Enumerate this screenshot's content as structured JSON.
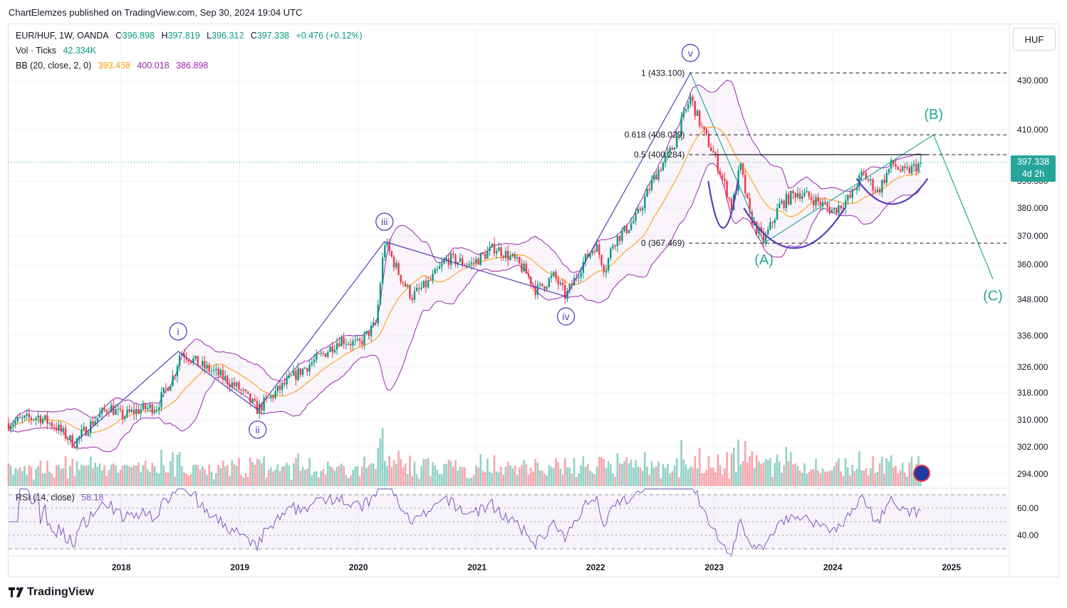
{
  "publisher_line": "ChartElemzes published on TradingView.com, Sep 30, 2024 19:04 UTC",
  "legend": {
    "symbol": "EUR/HUF, 1W, OANDA",
    "open_label": "O",
    "open": "396.898",
    "high_label": "H",
    "high": "397.819",
    "low_label": "L",
    "low": "396.312",
    "close_label": "C",
    "close": "397.338",
    "change": "+0.476 (+0.12%)",
    "vol_label": "Vol · Ticks",
    "vol": "42.334K",
    "bb_label": "BB (20, close, 2, 0)",
    "bb_mid": "393.458",
    "bb_up": "400.018",
    "bb_low": "386.898",
    "rsi_label": "RSI (14, close)",
    "rsi": "58.18"
  },
  "currency_button": "HUF",
  "price_tag": {
    "price": "397.338",
    "countdown": "4d 2h"
  },
  "brand": "TradingView",
  "colors": {
    "up": "#089981",
    "down": "#f23645",
    "bb_mid": "#ff9800",
    "bb_band": "#9c27b0",
    "wave": "#5b3fb8",
    "corrective": "#22ab94",
    "rsi": "#7e57c2"
  },
  "chart_data": {
    "type": "candlestick",
    "symbol": "EUR/HUF",
    "interval": "1W",
    "source": "OANDA",
    "ylim": [
      290,
      437
    ],
    "y_ticks": [
      294,
      302,
      310,
      318,
      326,
      336,
      348,
      360,
      370,
      380,
      390,
      410,
      430
    ],
    "y_tick_labels": [
      "294.000",
      "302.000",
      "310.000",
      "318.000",
      "326.000",
      "336.000",
      "348.000",
      "360.000",
      "370.000",
      "380.000",
      "390.000",
      "410.000",
      "430.000"
    ],
    "x_ticks": [
      "2018",
      "2019",
      "2020",
      "2021",
      "2022",
      "2023",
      "2024",
      "2025"
    ],
    "x_tick_pos": [
      2018,
      2019,
      2020,
      2021,
      2022,
      2023,
      2024,
      2025
    ],
    "xlim": [
      2017.05,
      2025.5
    ],
    "price_path": [
      [
        2017.05,
        309
      ],
      [
        2017.3,
        311
      ],
      [
        2017.45,
        308
      ],
      [
        2017.6,
        303
      ],
      [
        2017.75,
        309
      ],
      [
        2017.9,
        314
      ],
      [
        2018.0,
        311
      ],
      [
        2018.15,
        313
      ],
      [
        2018.3,
        314
      ],
      [
        2018.45,
        324
      ],
      [
        2018.5,
        331
      ],
      [
        2018.65,
        327
      ],
      [
        2018.85,
        323
      ],
      [
        2019.0,
        319
      ],
      [
        2019.15,
        313
      ],
      [
        2019.3,
        318
      ],
      [
        2019.45,
        323
      ],
      [
        2019.7,
        330
      ],
      [
        2019.85,
        335
      ],
      [
        2020.0,
        333
      ],
      [
        2020.15,
        340
      ],
      [
        2020.22,
        368
      ],
      [
        2020.35,
        356
      ],
      [
        2020.45,
        349
      ],
      [
        2020.6,
        354
      ],
      [
        2020.75,
        362
      ],
      [
        2020.95,
        360
      ],
      [
        2021.15,
        366
      ],
      [
        2021.3,
        362
      ],
      [
        2021.4,
        358
      ],
      [
        2021.5,
        351
      ],
      [
        2021.65,
        356
      ],
      [
        2021.75,
        349
      ],
      [
        2021.9,
        361
      ],
      [
        2022.0,
        367
      ],
      [
        2022.08,
        358
      ],
      [
        2022.15,
        368
      ],
      [
        2022.25,
        372
      ],
      [
        2022.35,
        377
      ],
      [
        2022.5,
        392
      ],
      [
        2022.65,
        403
      ],
      [
        2022.8,
        423
      ],
      [
        2022.9,
        410
      ],
      [
        2023.0,
        400
      ],
      [
        2023.1,
        387
      ],
      [
        2023.15,
        380
      ],
      [
        2023.22,
        396
      ],
      [
        2023.3,
        377
      ],
      [
        2023.42,
        368
      ],
      [
        2023.55,
        381
      ],
      [
        2023.7,
        386
      ],
      [
        2023.85,
        383
      ],
      [
        2024.0,
        379
      ],
      [
        2024.15,
        384
      ],
      [
        2024.25,
        393
      ],
      [
        2024.38,
        386
      ],
      [
        2024.5,
        397
      ],
      [
        2024.6,
        393
      ],
      [
        2024.75,
        397
      ]
    ],
    "bollinger": {
      "period": 20,
      "source": "close",
      "mult": 2,
      "offset": 0,
      "basis": 393.458,
      "upper": 400.018,
      "lower": 386.898
    },
    "volume": {
      "last": "42.334K",
      "unit": "ticks"
    },
    "rsi": {
      "period": 14,
      "last": 58.18,
      "levels": [
        70,
        60,
        50,
        40,
        30
      ],
      "tick_labels": [
        "60.00",
        "40.00"
      ]
    },
    "wave_labels": [
      {
        "label": "i",
        "x": 2018.48,
        "y": 331
      },
      {
        "label": "ii",
        "x": 2019.15,
        "y": 313
      },
      {
        "label": "iii",
        "x": 2020.22,
        "y": 368
      },
      {
        "label": "iv",
        "x": 2021.75,
        "y": 349
      },
      {
        "label": "v",
        "x": 2022.8,
        "y": 433.1
      },
      {
        "label": "(A)",
        "x": 2023.42,
        "y": 367.469
      },
      {
        "label": "(B)",
        "x": 2024.85,
        "y": 408.029
      },
      {
        "label": "(C)",
        "x": 2025.35,
        "y": 355
      }
    ],
    "fib_levels": [
      {
        "label": "1 (433.100)",
        "value": 433.1
      },
      {
        "label": "0.618 (408.029)",
        "value": 408.029
      },
      {
        "label": "0.5 (400.284)",
        "value": 400.284
      },
      {
        "label": "0 (367.469)",
        "value": 367.469
      }
    ],
    "last_price": 397.338
  }
}
